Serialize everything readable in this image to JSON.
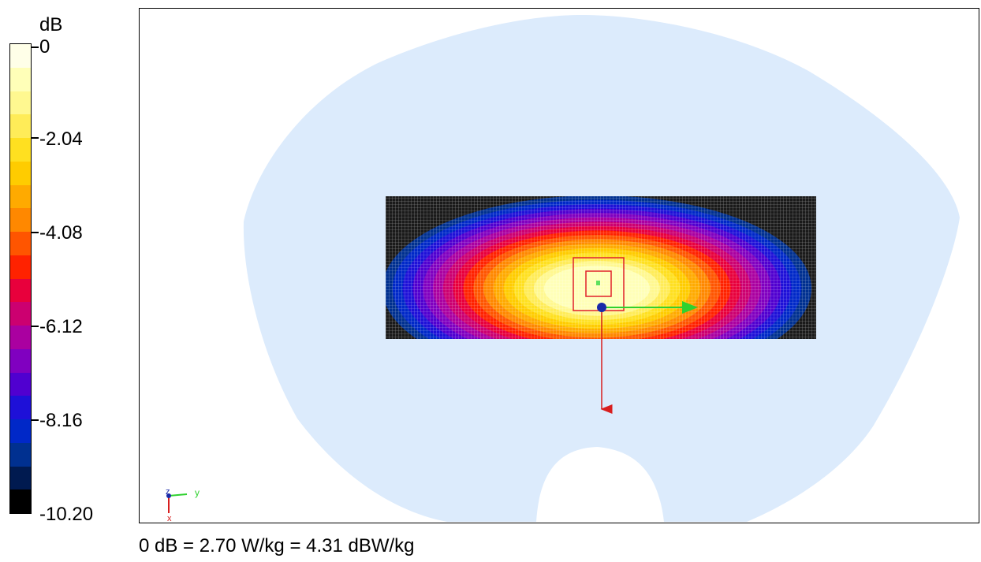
{
  "scale": {
    "unit_label": "dB",
    "ticks": [
      "0",
      "-2.04",
      "-4.08",
      "-6.12",
      "-8.16",
      "-10.20"
    ],
    "colors_top_to_bottom": [
      "#FFFFE8",
      "#FFFFB8",
      "#FFF890",
      "#FFEC58",
      "#FFE020",
      "#FFCC00",
      "#FFAA00",
      "#FF8800",
      "#FF5500",
      "#FF2200",
      "#E8003C",
      "#CC0070",
      "#AA00A0",
      "#8000C0",
      "#5000D0",
      "#1E10D8",
      "#0028C8",
      "#003090",
      "#001A50",
      "#000000"
    ]
  },
  "axes": {
    "y_label": "y",
    "z_label": "z",
    "x_label": "x"
  },
  "footer": {
    "reference_text": "0 dB = 2.70 W/kg = 4.31 dBW/kg"
  }
}
